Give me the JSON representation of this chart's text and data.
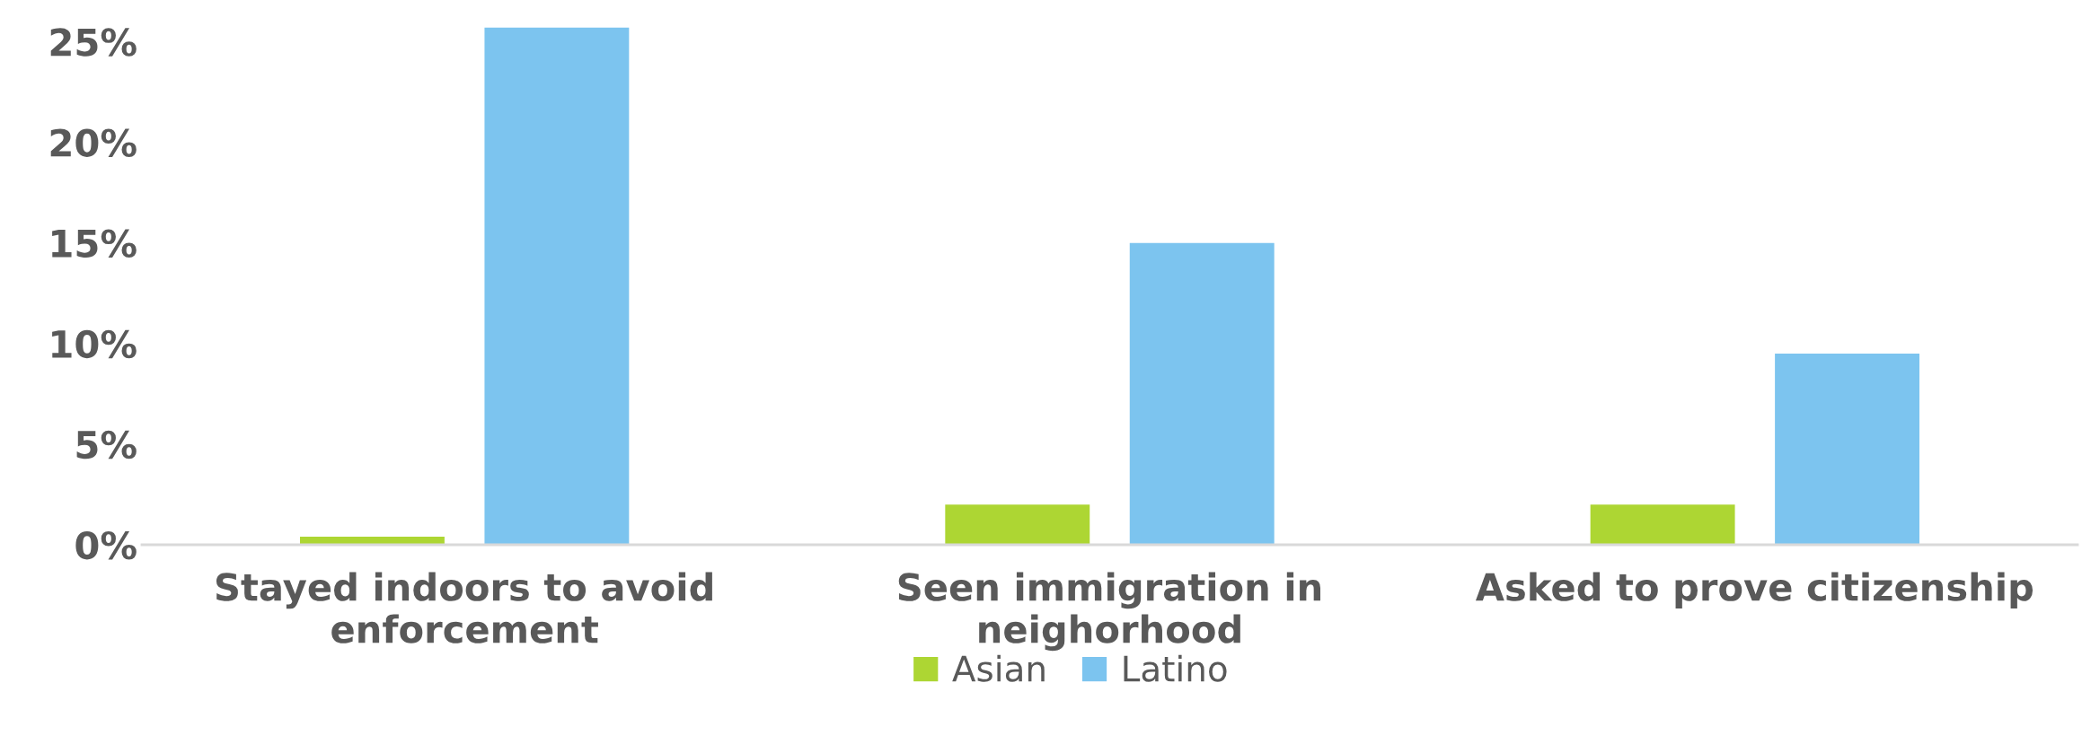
{
  "chart_data": {
    "type": "bar",
    "categories": [
      "Stayed indoors to avoid\nenforcement",
      "Seen immigration in\nneighorhood",
      "Asked to prove citizenship"
    ],
    "series": [
      {
        "name": "Asian",
        "color": "#add633",
        "values": [
          0.4,
          2.0,
          2.0
        ]
      },
      {
        "name": "Latino",
        "color": "#7cc4ef",
        "values": [
          25.7,
          15.0,
          9.5
        ]
      }
    ],
    "ylim": [
      0,
      26
    ],
    "yticks": [
      {
        "value": 0,
        "label": "0%"
      },
      {
        "value": 5,
        "label": "5%"
      },
      {
        "value": 10,
        "label": "10%"
      },
      {
        "value": 15,
        "label": "15%"
      },
      {
        "value": 20,
        "label": "20%"
      },
      {
        "value": 25,
        "label": "25%"
      }
    ],
    "grid": false,
    "legend": "bottom"
  }
}
